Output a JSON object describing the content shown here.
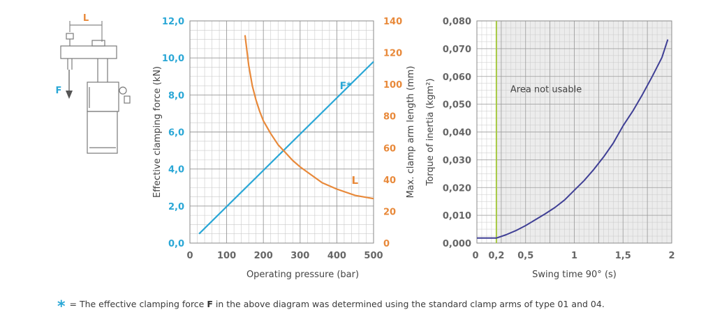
{
  "colors": {
    "blue": "#2aa7d6",
    "orange": "#e8893a",
    "navy": "#3f3f95",
    "green": "#a6c940",
    "grid": "#c9c9c9",
    "text": "#555555"
  },
  "schematic": {
    "l_label": "L",
    "f_label": "F"
  },
  "chart_data": [
    {
      "type": "line",
      "xlabel": "Operating pressure (bar)",
      "ylabel": "Effective clamping force  (kN)",
      "y2label": "Max. clamp arm length (mm)",
      "xlim": [
        0,
        500
      ],
      "ylim": [
        0,
        12
      ],
      "y2lim": [
        0,
        140
      ],
      "x_ticks": [
        "0",
        "100",
        "200",
        "300",
        "400",
        "500"
      ],
      "y_ticks": [
        "0,0",
        "2,0",
        "4,0",
        "6,0",
        "8,0",
        "10,0",
        "12,0"
      ],
      "y2_ticks": [
        "0",
        "20",
        "40",
        "60",
        "80",
        "100",
        "120",
        "140"
      ],
      "grid": true,
      "series": [
        {
          "name": "F*",
          "axis": "left",
          "color": "#2aa7d6",
          "x": [
            25,
            500
          ],
          "y": [
            0.5,
            9.8
          ]
        },
        {
          "name": "L",
          "axis": "right",
          "color": "#e8893a",
          "x": [
            150,
            160,
            170,
            180,
            190,
            200,
            220,
            240,
            260,
            280,
            300,
            330,
            360,
            400,
            450,
            500
          ],
          "y": [
            131,
            112,
            99,
            90,
            83,
            77,
            69,
            62,
            57,
            52,
            48,
            43,
            38,
            34,
            30,
            28
          ]
        }
      ]
    },
    {
      "type": "line",
      "xlabel": "Swing time 90° (s)",
      "ylabel": "Torque of inertia (kgm²)",
      "xlim": [
        0,
        2
      ],
      "ylim": [
        0,
        0.08
      ],
      "x_ticks": [
        "0",
        "0,2",
        "0,5",
        "1",
        "1,5",
        "2"
      ],
      "y_ticks": [
        "0,000",
        "0,010",
        "0,020",
        "0,030",
        "0,040",
        "0,050",
        "0,060",
        "0,070",
        "0,080"
      ],
      "grid": true,
      "annotation": "Area not usable",
      "threshold_x": 0.2,
      "series": [
        {
          "name": "",
          "color": "#3f3f95",
          "x": [
            0,
            0.2,
            0.3,
            0.4,
            0.5,
            0.6,
            0.7,
            0.8,
            0.9,
            1.0,
            1.1,
            1.2,
            1.3,
            1.4,
            1.5,
            1.6,
            1.7,
            1.8,
            1.9,
            1.96
          ],
          "y": [
            0.0018,
            0.0018,
            0.003,
            0.0045,
            0.0063,
            0.0084,
            0.0105,
            0.0128,
            0.0155,
            0.019,
            0.0225,
            0.0265,
            0.031,
            0.036,
            0.0422,
            0.0475,
            0.0535,
            0.06,
            0.0668,
            0.0733
          ]
        }
      ]
    }
  ],
  "footnote": {
    "marker": "*",
    "text_before": "= The effective clamping force ",
    "bold": "F",
    "text_after": " in the above diagram was determined using the standard clamp arms of type 01 and 04."
  }
}
